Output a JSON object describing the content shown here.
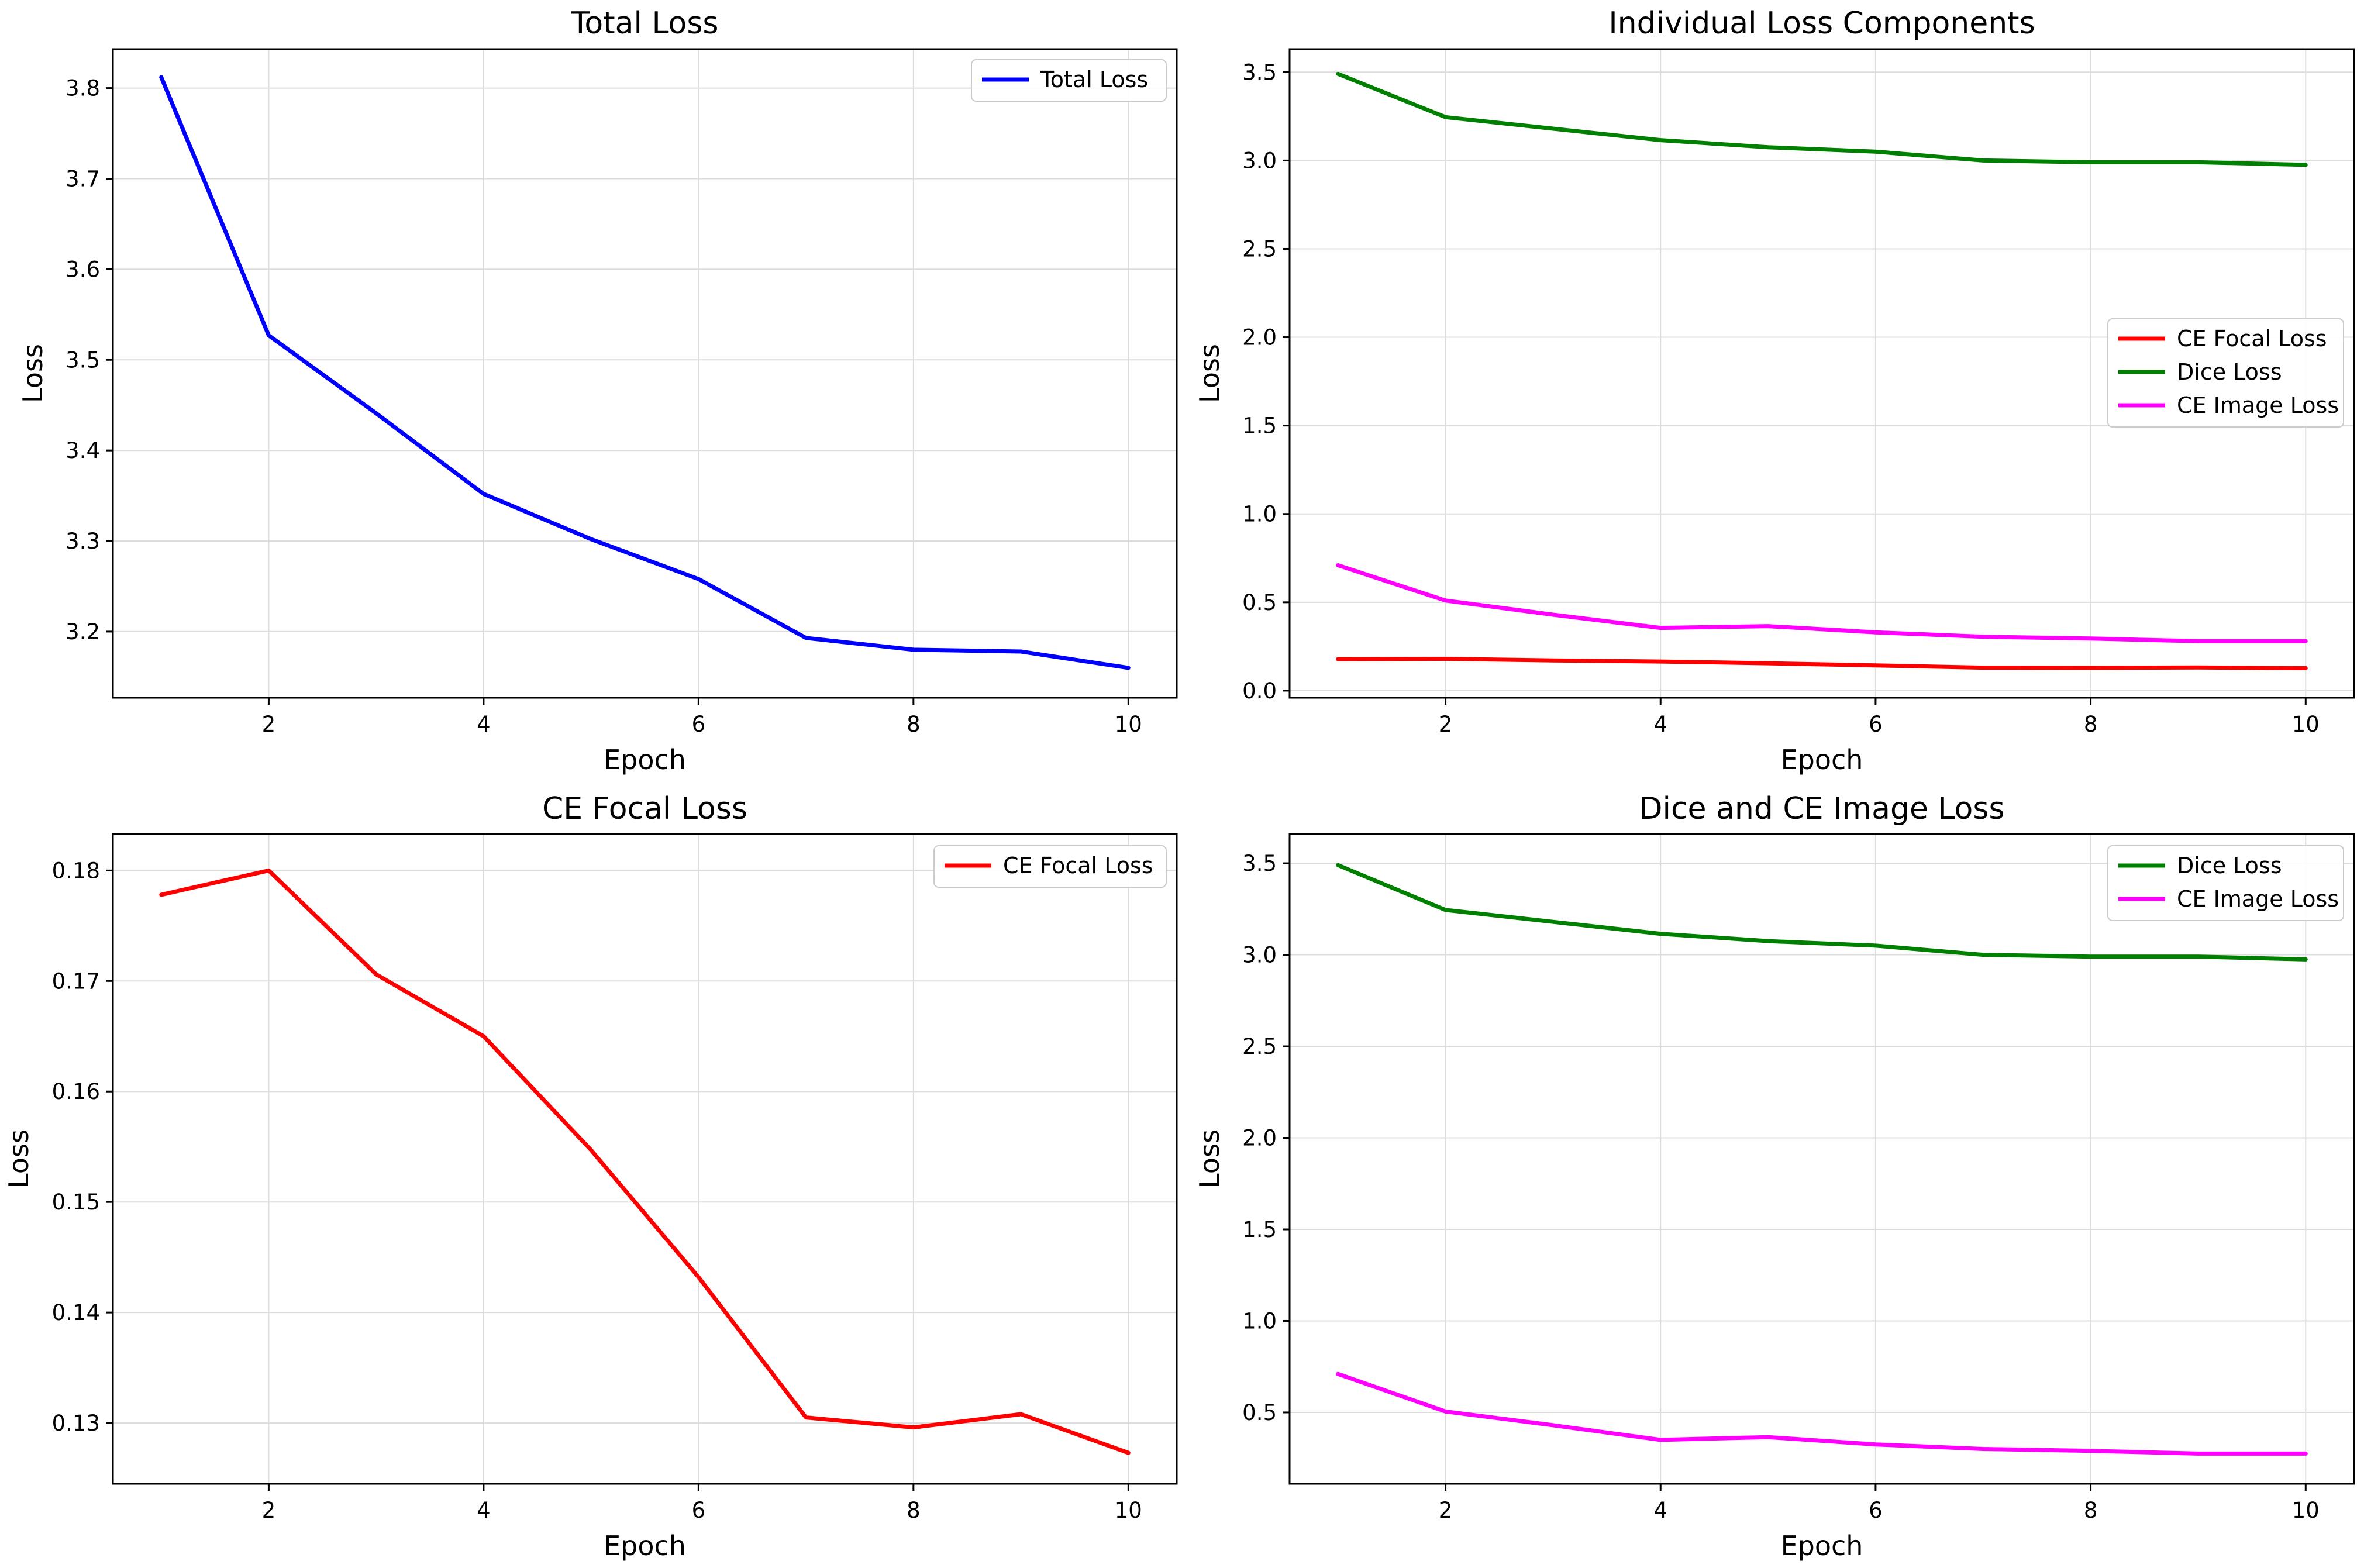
{
  "chart_data": [
    {
      "type": "line",
      "title": "Total Loss",
      "xlabel": "Epoch",
      "ylabel": "Loss",
      "xlim": [
        0.55,
        10.45
      ],
      "ylim": [
        3.127,
        3.843
      ],
      "xticks": [
        2,
        4,
        6,
        8,
        10
      ],
      "yticks": [
        3.2,
        3.3,
        3.4,
        3.5,
        3.6,
        3.7,
        3.8
      ],
      "ytick_labels": [
        "3.2",
        "3.3",
        "3.4",
        "3.5",
        "3.6",
        "3.7",
        "3.8"
      ],
      "grid": true,
      "legend": "top-right",
      "x": [
        1,
        2,
        3,
        4,
        5,
        6,
        7,
        8,
        9,
        10
      ],
      "series": [
        {
          "name": "Total Loss",
          "color": "#0000ff",
          "values": [
            3.812,
            3.527,
            3.441,
            3.352,
            3.302,
            3.258,
            3.193,
            3.18,
            3.178,
            3.16
          ]
        }
      ]
    },
    {
      "type": "line",
      "title": "Individual Loss Components",
      "xlabel": "Epoch",
      "ylabel": "Loss",
      "xlim": [
        0.55,
        10.45
      ],
      "ylim": [
        -0.04,
        3.63
      ],
      "xticks": [
        2,
        4,
        6,
        8,
        10
      ],
      "yticks": [
        0.0,
        0.5,
        1.0,
        1.5,
        2.0,
        2.5,
        3.0,
        3.5
      ],
      "ytick_labels": [
        "0.0",
        "0.5",
        "1.0",
        "1.5",
        "2.0",
        "2.5",
        "3.0",
        "3.5"
      ],
      "grid": true,
      "legend": "center-right",
      "x": [
        1,
        2,
        3,
        4,
        5,
        6,
        7,
        8,
        9,
        10
      ],
      "series": [
        {
          "name": "CE Focal Loss",
          "color": "#ff0000",
          "values": [
            0.178,
            0.18,
            0.171,
            0.165,
            0.155,
            0.143,
            0.13,
            0.129,
            0.131,
            0.127
          ]
        },
        {
          "name": "Dice Loss",
          "color": "#008000",
          "values": [
            3.49,
            3.245,
            3.18,
            3.115,
            3.075,
            3.05,
            3.0,
            2.99,
            2.99,
            2.975
          ]
        },
        {
          "name": "CE Image Loss",
          "color": "#ff00ff",
          "values": [
            0.71,
            0.51,
            0.43,
            0.355,
            0.365,
            0.33,
            0.305,
            0.295,
            0.28,
            0.28
          ]
        }
      ]
    },
    {
      "type": "line",
      "title": "CE Focal Loss",
      "xlabel": "Epoch",
      "ylabel": "Loss",
      "xlim": [
        0.55,
        10.45
      ],
      "ylim": [
        0.1245,
        0.1833
      ],
      "xticks": [
        2,
        4,
        6,
        8,
        10
      ],
      "yticks": [
        0.13,
        0.14,
        0.15,
        0.16,
        0.17,
        0.18
      ],
      "ytick_labels": [
        "0.13",
        "0.14",
        "0.15",
        "0.16",
        "0.17",
        "0.18"
      ],
      "grid": true,
      "legend": "top-right",
      "x": [
        1,
        2,
        3,
        4,
        5,
        6,
        7,
        8,
        9,
        10
      ],
      "series": [
        {
          "name": "CE Focal Loss",
          "color": "#ff0000",
          "values": [
            0.1778,
            0.18,
            0.1706,
            0.165,
            0.1547,
            0.1432,
            0.1305,
            0.1296,
            0.1308,
            0.1273
          ]
        }
      ]
    },
    {
      "type": "line",
      "title": "Dice and CE Image Loss",
      "xlabel": "Epoch",
      "ylabel": "Loss",
      "xlim": [
        0.55,
        10.45
      ],
      "ylim": [
        0.11,
        3.66
      ],
      "xticks": [
        2,
        4,
        6,
        8,
        10
      ],
      "yticks": [
        0.5,
        1.0,
        1.5,
        2.0,
        2.5,
        3.0,
        3.5
      ],
      "ytick_labels": [
        "0.5",
        "1.0",
        "1.5",
        "2.0",
        "2.5",
        "3.0",
        "3.5"
      ],
      "grid": true,
      "legend": "top-right",
      "x": [
        1,
        2,
        3,
        4,
        5,
        6,
        7,
        8,
        9,
        10
      ],
      "series": [
        {
          "name": "Dice Loss",
          "color": "#008000",
          "values": [
            3.49,
            3.245,
            3.18,
            3.115,
            3.075,
            3.05,
            3.0,
            2.99,
            2.99,
            2.975
          ]
        },
        {
          "name": "CE Image Loss",
          "color": "#ff00ff",
          "values": [
            0.71,
            0.505,
            0.43,
            0.35,
            0.365,
            0.325,
            0.3,
            0.29,
            0.275,
            0.275
          ]
        }
      ]
    }
  ]
}
